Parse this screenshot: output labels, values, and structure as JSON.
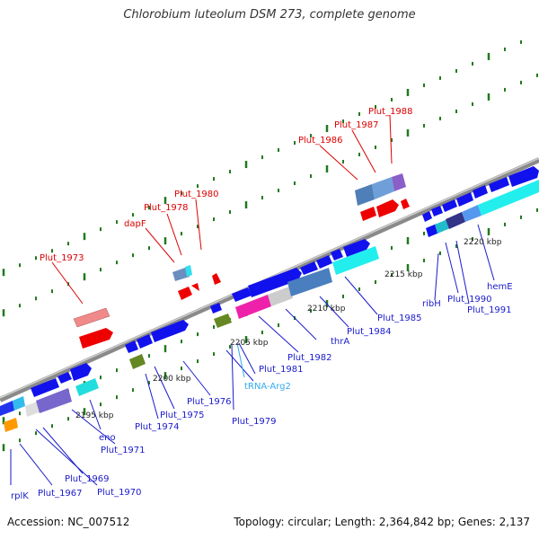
{
  "title": "Chlorobium luteolum DSM 273, complete genome",
  "accession": "Accession: NC_007512",
  "summary": "Topology: circular; Length: 2,364,842 bp; Genes: 2,137",
  "colors": {
    "top_label": "#dd0000",
    "bottom_label": "#1a1acc",
    "trna_label": "#33aaee",
    "backbone": "#8a8a8a",
    "tick": "#1e7a1e"
  },
  "ticks": [
    "2195 kbp",
    "2200 kbp",
    "2205 kbp",
    "2210 kbp",
    "2215 kbp",
    "2220 kbp"
  ],
  "top_labels": [
    "Plut_1973",
    "dapF",
    "Plut_1978",
    "Plut_1980",
    "Plut_1986",
    "Plut_1987",
    "Plut_1988"
  ],
  "bottom_labels": [
    "rplK",
    "Plut_1967",
    "Plut_1969",
    "Plut_1970",
    "Plut_1971",
    "eno",
    "Plut_1974",
    "Plut_1975",
    "Plut_1976",
    "Plut_1979",
    "tRNA-Arg2",
    "Plut_1981",
    "Plut_1982",
    "thrA",
    "Plut_1984",
    "Plut_1985",
    "ribH",
    "Plut_1990",
    "Plut_1991",
    "hemE"
  ]
}
